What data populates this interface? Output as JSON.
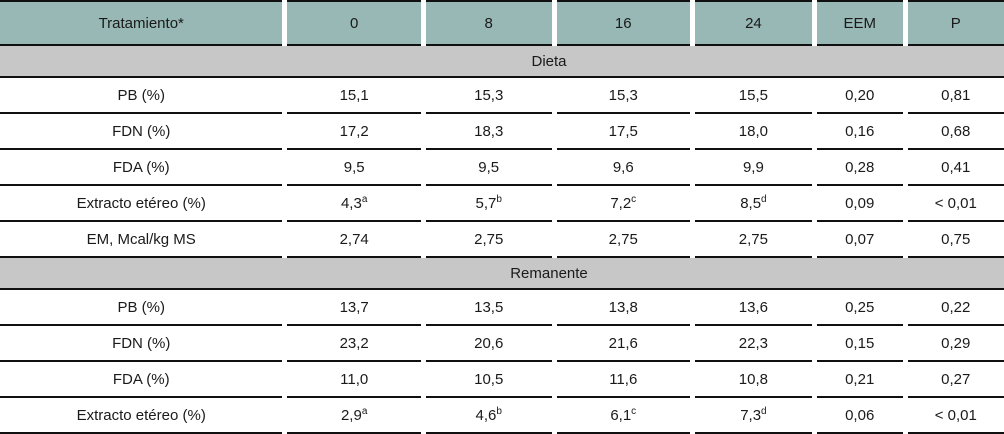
{
  "table": {
    "colors": {
      "header_bg": "#98b8b5",
      "section_bg": "#c7c7c7",
      "border": "#101010",
      "text": "#1a1a1a"
    },
    "columns": [
      "Tratamiento*",
      "0",
      "8",
      "16",
      "24",
      "EEM",
      "P"
    ],
    "sections": [
      {
        "title": "Dieta",
        "rows": [
          {
            "label": "PB (%)",
            "values": [
              "15,1",
              "15,3",
              "15,3",
              "15,5",
              "0,20",
              "0,81"
            ]
          },
          {
            "label": "FDN (%)",
            "values": [
              "17,2",
              "18,3",
              "17,5",
              "18,0",
              "0,16",
              "0,68"
            ]
          },
          {
            "label": "FDA (%)",
            "values": [
              "9,5",
              "9,5",
              "9,6",
              "9,9",
              "0,28",
              "0,41"
            ]
          },
          {
            "label": "Extracto etéreo (%)",
            "values": [
              "4,3",
              "5,7",
              "7,2",
              "8,5",
              "0,09",
              "< 0,01"
            ],
            "sups": [
              "a",
              "b",
              "c",
              "d",
              "",
              ""
            ]
          },
          {
            "label": "EM, Mcal/kg MS",
            "values": [
              "2,74",
              "2,75",
              "2,75",
              "2,75",
              "0,07",
              "0,75"
            ]
          }
        ]
      },
      {
        "title": "Remanente",
        "rows": [
          {
            "label": "PB (%)",
            "values": [
              "13,7",
              "13,5",
              "13,8",
              "13,6",
              "0,25",
              "0,22"
            ]
          },
          {
            "label": "FDN (%)",
            "values": [
              "23,2",
              "20,6",
              "21,6",
              "22,3",
              "0,15",
              "0,29"
            ]
          },
          {
            "label": "FDA (%)",
            "values": [
              "11,0",
              "10,5",
              "11,6",
              "10,8",
              "0,21",
              "0,27"
            ]
          },
          {
            "label": "Extracto etéreo (%)",
            "values": [
              "2,9",
              "4,6",
              "6,1",
              "7,3",
              "0,06",
              "< 0,01"
            ],
            "sups": [
              "a",
              "b",
              "c",
              "d",
              "",
              ""
            ]
          }
        ]
      }
    ]
  }
}
